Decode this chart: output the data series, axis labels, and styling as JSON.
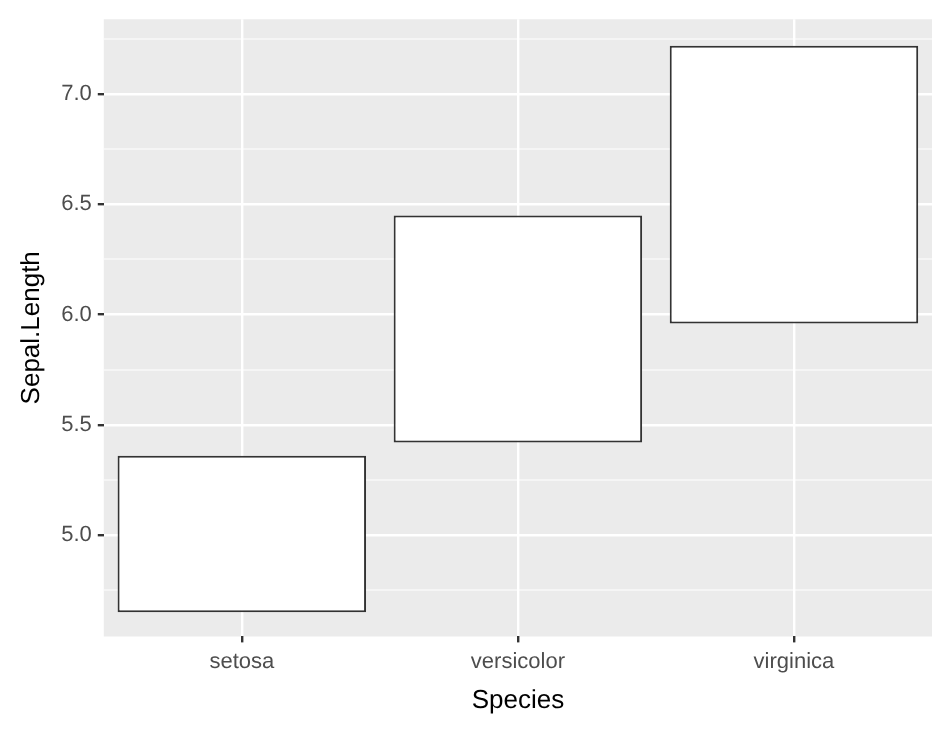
{
  "chart_data": {
    "type": "bar",
    "xlabel": "Species",
    "ylabel": "Sepal.Length",
    "categories": [
      "setosa",
      "versicolor",
      "virginica"
    ],
    "base": [
      4.65,
      5.42,
      5.96
    ],
    "values": [
      0.71,
      1.03,
      1.26
    ],
    "color": "#ffffff",
    "ylim": [
      4.54,
      7.34
    ],
    "yticks": [
      {
        "value": 4.75,
        "label": null
      },
      {
        "value": 5,
        "label": "5.0"
      },
      {
        "value": 5.25,
        "label": null
      },
      {
        "value": 5.5,
        "label": "5.5"
      },
      {
        "value": 5.75,
        "label": null
      },
      {
        "value": 6,
        "label": "6.0"
      },
      {
        "value": 6.25,
        "label": null
      },
      {
        "value": 6.5,
        "label": "6.5"
      },
      {
        "value": 6.75,
        "label": null
      },
      {
        "value": 7,
        "label": "7.0"
      },
      {
        "value": 7.25,
        "label": null
      }
    ],
    "grid": true
  }
}
